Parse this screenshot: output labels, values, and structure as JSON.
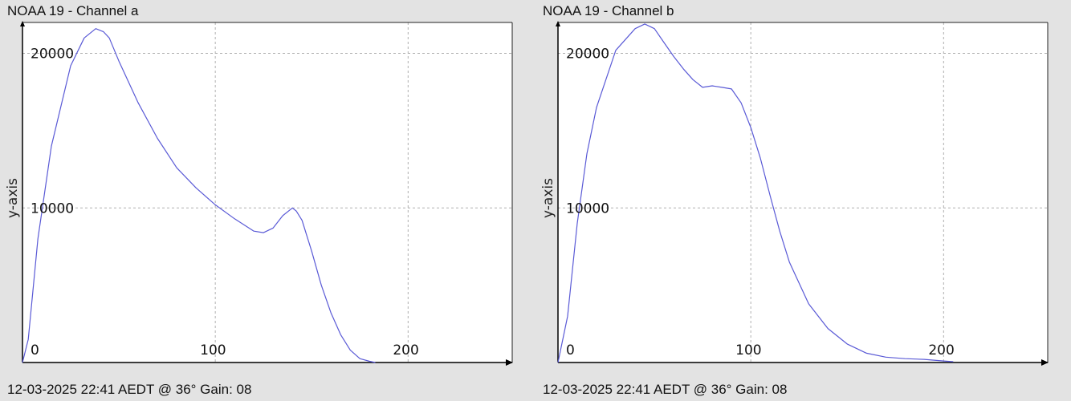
{
  "charts": [
    {
      "title": "NOAA 19 - Channel a",
      "footer": "12-03-2025 22:41 AEDT @ 36° Gain: 08",
      "ylabel": "y-axis"
    },
    {
      "title": "NOAA 19 - Channel b",
      "footer": "12-03-2025 22:41 AEDT @ 36° Gain: 08",
      "ylabel": "y-axis"
    }
  ],
  "colors": {
    "line": "#5a5ad6",
    "grid": "#b0b0b0",
    "background": "#e3e3e3",
    "plot_background": "#ffffff"
  },
  "chart_data": [
    {
      "type": "line",
      "title": "NOAA 19 - Channel a",
      "xlabel": "",
      "ylabel": "y-axis",
      "xlim": [
        0,
        254
      ],
      "ylim": [
        0,
        22000
      ],
      "x_ticks": [
        0,
        100,
        200
      ],
      "y_ticks": [
        10000,
        20000
      ],
      "grid": true,
      "series": [
        {
          "x": [
            0,
            3,
            8,
            15,
            25,
            32,
            38,
            42,
            45,
            50,
            60,
            70,
            80,
            90,
            100,
            110,
            115,
            120,
            125,
            130,
            135,
            140,
            142,
            145,
            150,
            155,
            160,
            165,
            170,
            175,
            180,
            183
          ],
          "y": [
            0,
            1500,
            8000,
            14000,
            19200,
            21000,
            21600,
            21400,
            21000,
            19500,
            16800,
            14500,
            12600,
            11300,
            10200,
            9300,
            8900,
            8500,
            8400,
            8700,
            9500,
            10000,
            9800,
            9200,
            7200,
            5000,
            3200,
            1800,
            800,
            250,
            80,
            0
          ]
        }
      ]
    },
    {
      "type": "line",
      "title": "NOAA 19 - Channel b",
      "xlabel": "",
      "ylabel": "y-axis",
      "xlim": [
        0,
        254
      ],
      "ylim": [
        0,
        22000
      ],
      "x_ticks": [
        0,
        100,
        200
      ],
      "y_ticks": [
        10000,
        20000
      ],
      "grid": true,
      "series": [
        {
          "x": [
            0,
            5,
            10,
            15,
            20,
            30,
            40,
            45,
            50,
            55,
            60,
            65,
            70,
            75,
            80,
            85,
            90,
            95,
            100,
            105,
            110,
            115,
            120,
            130,
            140,
            150,
            160,
            170,
            180,
            190,
            200,
            205
          ],
          "y": [
            0,
            3000,
            9000,
            13500,
            16500,
            20200,
            21600,
            21900,
            21600,
            20700,
            19800,
            19000,
            18300,
            17800,
            17900,
            17800,
            17700,
            16800,
            15200,
            13200,
            10800,
            8500,
            6500,
            3800,
            2200,
            1200,
            600,
            350,
            250,
            200,
            100,
            50
          ]
        }
      ]
    }
  ]
}
